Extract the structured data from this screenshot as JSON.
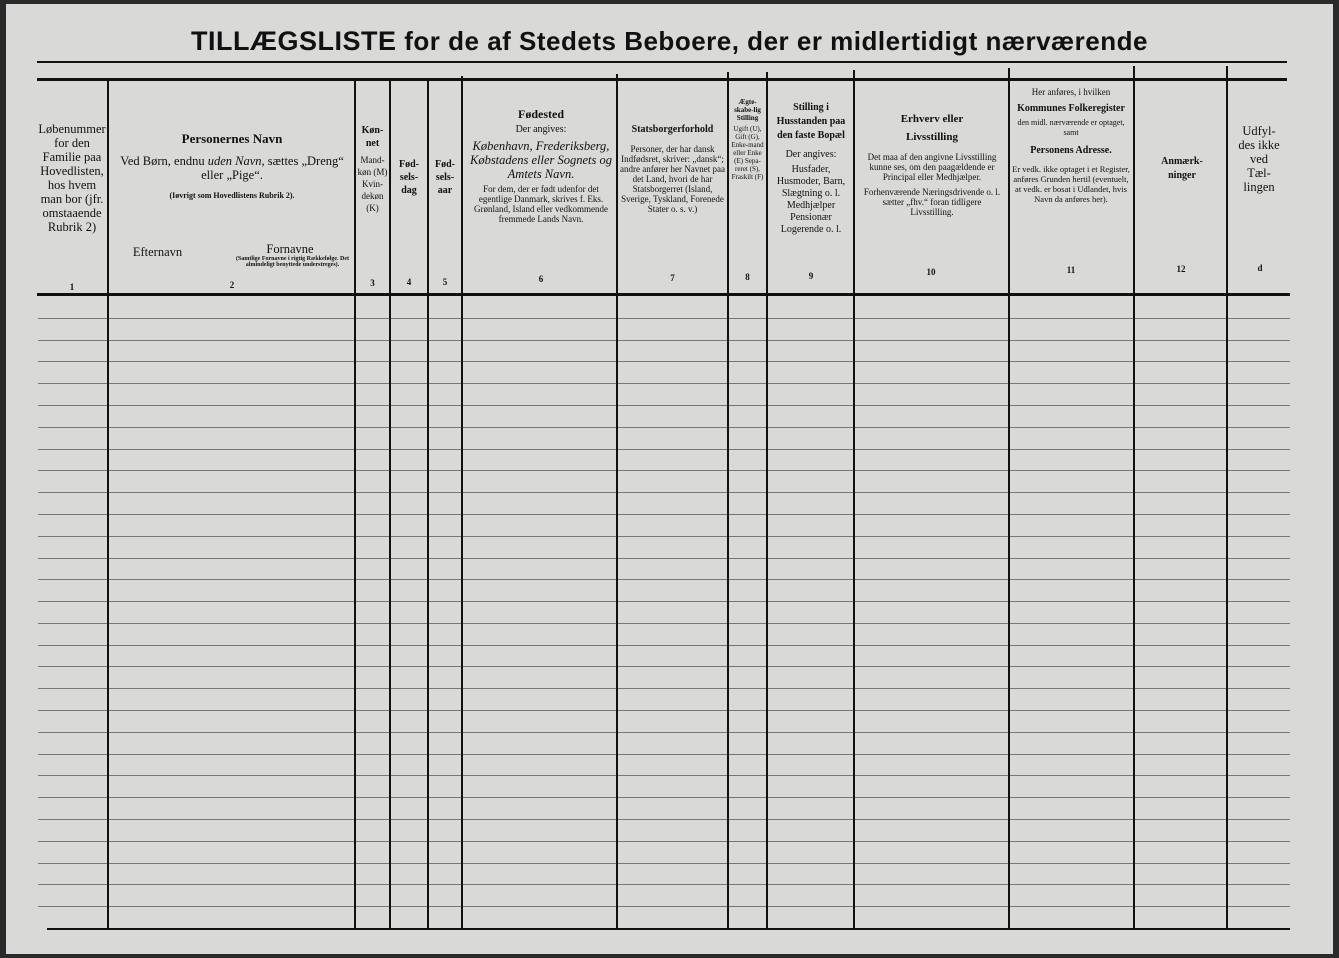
{
  "title": {
    "main": "TILLÆGSLISTE",
    "rest": "for de af Stedets Beboere, der er midlertidigt nærværende"
  },
  "columns": [
    {
      "num": "1",
      "text": "Løbenummer for den Familie paa Hovedlisten, hos hvem man bor (jfr. omstaaende Rubrik 2)"
    },
    {
      "num": "2",
      "heading": "Personernes Navn",
      "line1a": "Ved Børn, endnu ",
      "line1b": "uden Navn",
      "line1c": ", sættes „Dreng“ eller „Pige“.",
      "line2": "(Iøvrigt som Hovedlistens Rubrik 2).",
      "sub1": "Efternavn",
      "sub2": "Fornavne",
      "sub2note": "(Samtlige Fornavne i rigtig Rækkefølge. Det almindeligt benyttede understreges)."
    },
    {
      "num": "3",
      "heading": "Køn-net",
      "text": "Mand-køn (M) Kvin-dekøn (K)"
    },
    {
      "num": "4",
      "heading": "Fød-sels-dag"
    },
    {
      "num": "5",
      "heading": "Fød-sels-aar"
    },
    {
      "num": "6",
      "heading": "Fødested",
      "line1": "Der angives:",
      "line2": "København, Frederiksberg, Købstadens eller Sognets og Amtets Navn.",
      "line3": "For dem, der er født udenfor det egentlige Danmark, skrives f. Eks. Grønland, Island eller vedkommende fremmede Lands Navn."
    },
    {
      "num": "7",
      "heading": "Statsborgerforhold",
      "text": "Personer, der har dansk Indfødsret, skriver: „dansk“; andre anfører her Navnet paa det Land, hvori de har Statsborgerret (Island, Sverige, Tyskland, Forenede Stater o. s. v.)"
    },
    {
      "num": "8",
      "heading": "Ægte-skabe-lig Stilling",
      "text": "Ugift (U), Gift (G), Enke-mand eller Enke (E) Sepa-reret (S), Fraskilt (F)"
    },
    {
      "num": "9",
      "heading": "Stilling i Husstanden paa den faste Bopæl",
      "line1": "Der angives:",
      "line2": "Husfader, Husmoder, Barn, Slægtning o. l. Medhjælper Pensionær Logerende o. l."
    },
    {
      "num": "10",
      "heading": "Erhverv eller Livsstilling",
      "line1": "Det maa af den angivne Livsstilling kunne ses, om den paagældende er Principal eller Medhjælper.",
      "line2": "Forhenværende Næringsdrivende o. l. sætter „fhv.“ foran tidligere Livsstilling."
    },
    {
      "num": "11",
      "pre": "Her anføres, i hvilken",
      "heading": "Kommunes Folkeregister",
      "line1": "den midl. nærværende er optaget, samt",
      "heading2": "Personens Adresse.",
      "line2": "Er vedk. ikke optaget i et Register, anføres Grunden hertil (eventuelt, at vedk. er bosat i Udlandet, hvis Navn da anføres her)."
    },
    {
      "num": "12",
      "heading": "Anmærk-ninger"
    },
    {
      "num": "d",
      "text": "Udfyl-des ikke ved Tæl-lingen"
    }
  ],
  "body_rows": 29
}
